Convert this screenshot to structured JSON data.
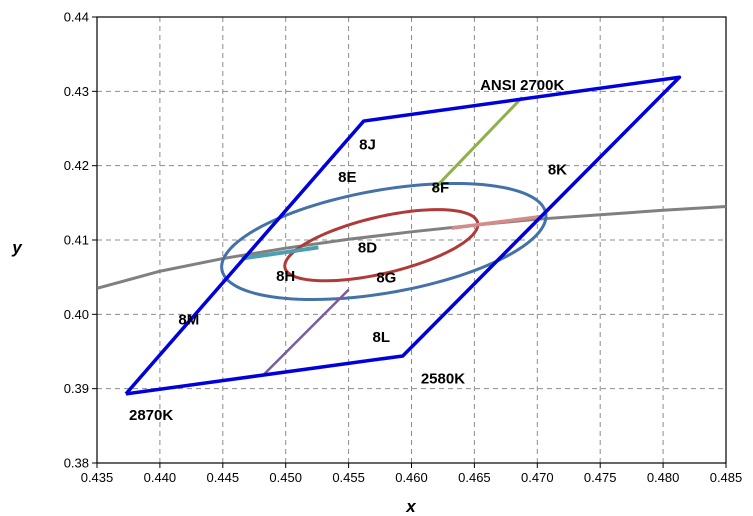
{
  "chart_data": {
    "type": "line",
    "title": "",
    "xlabel": "x",
    "ylabel": "y",
    "xlim": [
      0.435,
      0.485
    ],
    "ylim": [
      0.38,
      0.44
    ],
    "x_ticks": [
      "0.435",
      "0.440",
      "0.445",
      "0.450",
      "0.455",
      "0.460",
      "0.465",
      "0.470",
      "0.475",
      "0.480",
      "0.485"
    ],
    "y_ticks": [
      "0.38",
      "0.39",
      "0.40",
      "0.41",
      "0.42",
      "0.43",
      "0.44"
    ],
    "grid": true,
    "colors": {
      "quadrangle": "#0000dd",
      "planckian_locus": "#808080",
      "ellipse_outer": "#4472a8",
      "ellipse_inner": "#b03a3a",
      "line_2700k": "#8fb14a",
      "line_2580k": "#d68b8b",
      "line_2870k": "#4a9fb0",
      "line_lower": "#7a5aa0"
    },
    "series": [
      {
        "role": "quadrangle",
        "points": [
          [
            0.4373,
            0.3893
          ],
          [
            0.4562,
            0.426
          ],
          [
            0.4813,
            0.4319
          ],
          [
            0.4593,
            0.3944
          ],
          [
            0.4373,
            0.3893
          ]
        ]
      },
      {
        "role": "planckian_locus",
        "points": [
          [
            0.435,
            0.4035
          ],
          [
            0.44,
            0.4058
          ],
          [
            0.445,
            0.4075
          ],
          [
            0.45,
            0.4089
          ],
          [
            0.455,
            0.4101
          ],
          [
            0.46,
            0.4111
          ],
          [
            0.465,
            0.412
          ],
          [
            0.47,
            0.4128
          ],
          [
            0.475,
            0.4134
          ],
          [
            0.48,
            0.414
          ],
          [
            0.485,
            0.4145
          ]
        ]
      },
      {
        "role": "ellipse_outer",
        "center": [
          0.4578,
          0.4098
        ],
        "semi_axes": [
          0.0135,
          0.0067
        ],
        "rotation_deg": 20
      },
      {
        "role": "ellipse_inner",
        "center": [
          0.4576,
          0.4093
        ],
        "semi_axes": [
          0.0083,
          0.0036
        ],
        "rotation_deg": 25
      },
      {
        "role": "line_2700k",
        "points": [
          [
            0.4617,
            0.4167
          ],
          [
            0.4688,
            0.4292
          ]
        ]
      },
      {
        "role": "line_2580k",
        "points": [
          [
            0.4632,
            0.4116
          ],
          [
            0.4705,
            0.4132
          ]
        ]
      },
      {
        "role": "line_2870k",
        "points": [
          [
            0.4465,
            0.4075
          ],
          [
            0.4526,
            0.409
          ]
        ]
      },
      {
        "role": "line_lower",
        "points": [
          [
            0.4482,
            0.3918
          ],
          [
            0.455,
            0.4033
          ]
        ]
      }
    ],
    "annotations": [
      {
        "text": "ANSI 2700K",
        "x": 0.4688,
        "y": 0.4302
      },
      {
        "text": "8J",
        "x": 0.4565,
        "y": 0.4222
      },
      {
        "text": "8E",
        "x": 0.4549,
        "y": 0.4178
      },
      {
        "text": "8F",
        "x": 0.4623,
        "y": 0.4164
      },
      {
        "text": "8K",
        "x": 0.4716,
        "y": 0.4188
      },
      {
        "text": "8D",
        "x": 0.4565,
        "y": 0.4083
      },
      {
        "text": "8H",
        "x": 0.45,
        "y": 0.4045
      },
      {
        "text": "8G",
        "x": 0.458,
        "y": 0.4043
      },
      {
        "text": "8M",
        "x": 0.4423,
        "y": 0.3986
      },
      {
        "text": "8L",
        "x": 0.4576,
        "y": 0.3963
      },
      {
        "text": "2580K",
        "x": 0.4625,
        "y": 0.3907
      },
      {
        "text": "2870K",
        "x": 0.4393,
        "y": 0.3858
      }
    ]
  }
}
